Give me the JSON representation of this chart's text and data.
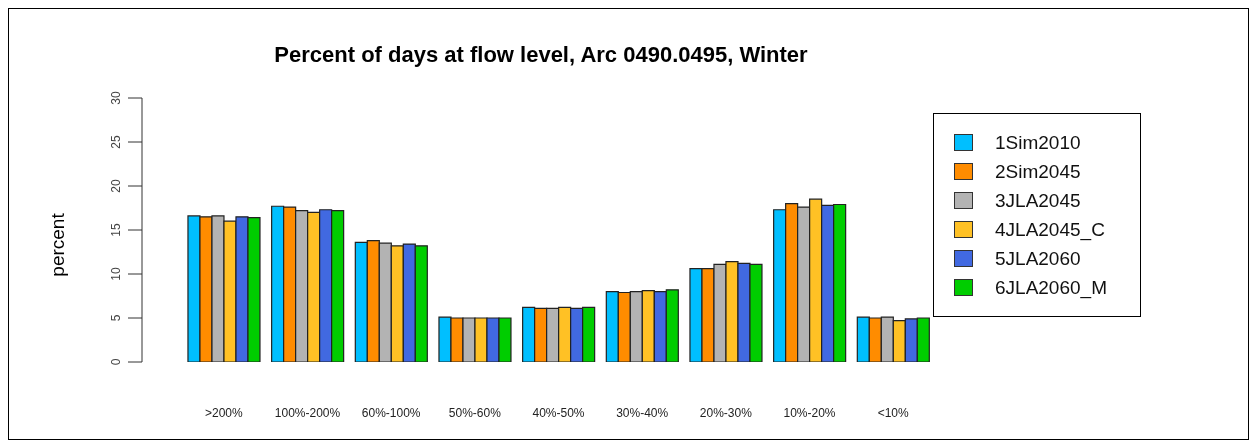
{
  "chart_data": {
    "type": "bar",
    "title": "Percent of days at flow level, Arc 0490.0495, Winter",
    "ylabel": "percent",
    "categories": [
      ">200%",
      "100%-200%",
      "60%-100%",
      "50%-60%",
      "40%-50%",
      "30%-40%",
      "20%-30%",
      "10%-20%",
      "<10%"
    ],
    "series": [
      {
        "name": "1Sim2010",
        "color": "#00bfff",
        "values": [
          16.6,
          17.7,
          13.6,
          5.1,
          6.2,
          8.0,
          10.6,
          17.3,
          5.1
        ]
      },
      {
        "name": "2Sim2045",
        "color": "#ff8c00",
        "values": [
          16.5,
          17.6,
          13.8,
          5.0,
          6.1,
          7.9,
          10.6,
          18.0,
          5.0
        ]
      },
      {
        "name": "3JLA2045",
        "color": "#b3b3b3",
        "values": [
          16.6,
          17.2,
          13.5,
          5.0,
          6.1,
          8.0,
          11.1,
          17.6,
          5.1
        ]
      },
      {
        "name": "4JLA2045_C",
        "color": "#ffc125",
        "values": [
          16.0,
          17.0,
          13.2,
          5.0,
          6.2,
          8.1,
          11.4,
          18.5,
          4.7
        ]
      },
      {
        "name": "5JLA2060",
        "color": "#4169e1",
        "values": [
          16.5,
          17.3,
          13.4,
          5.0,
          6.1,
          8.0,
          11.2,
          17.8,
          4.9
        ]
      },
      {
        "name": "6JLA2060_M",
        "color": "#00cd00",
        "values": [
          16.4,
          17.2,
          13.2,
          5.0,
          6.2,
          8.2,
          11.1,
          17.9,
          5.0
        ]
      }
    ],
    "ylim": [
      0,
      30
    ],
    "yticks": [
      0,
      5,
      10,
      15,
      20,
      25,
      30
    ],
    "legend": "top right"
  }
}
